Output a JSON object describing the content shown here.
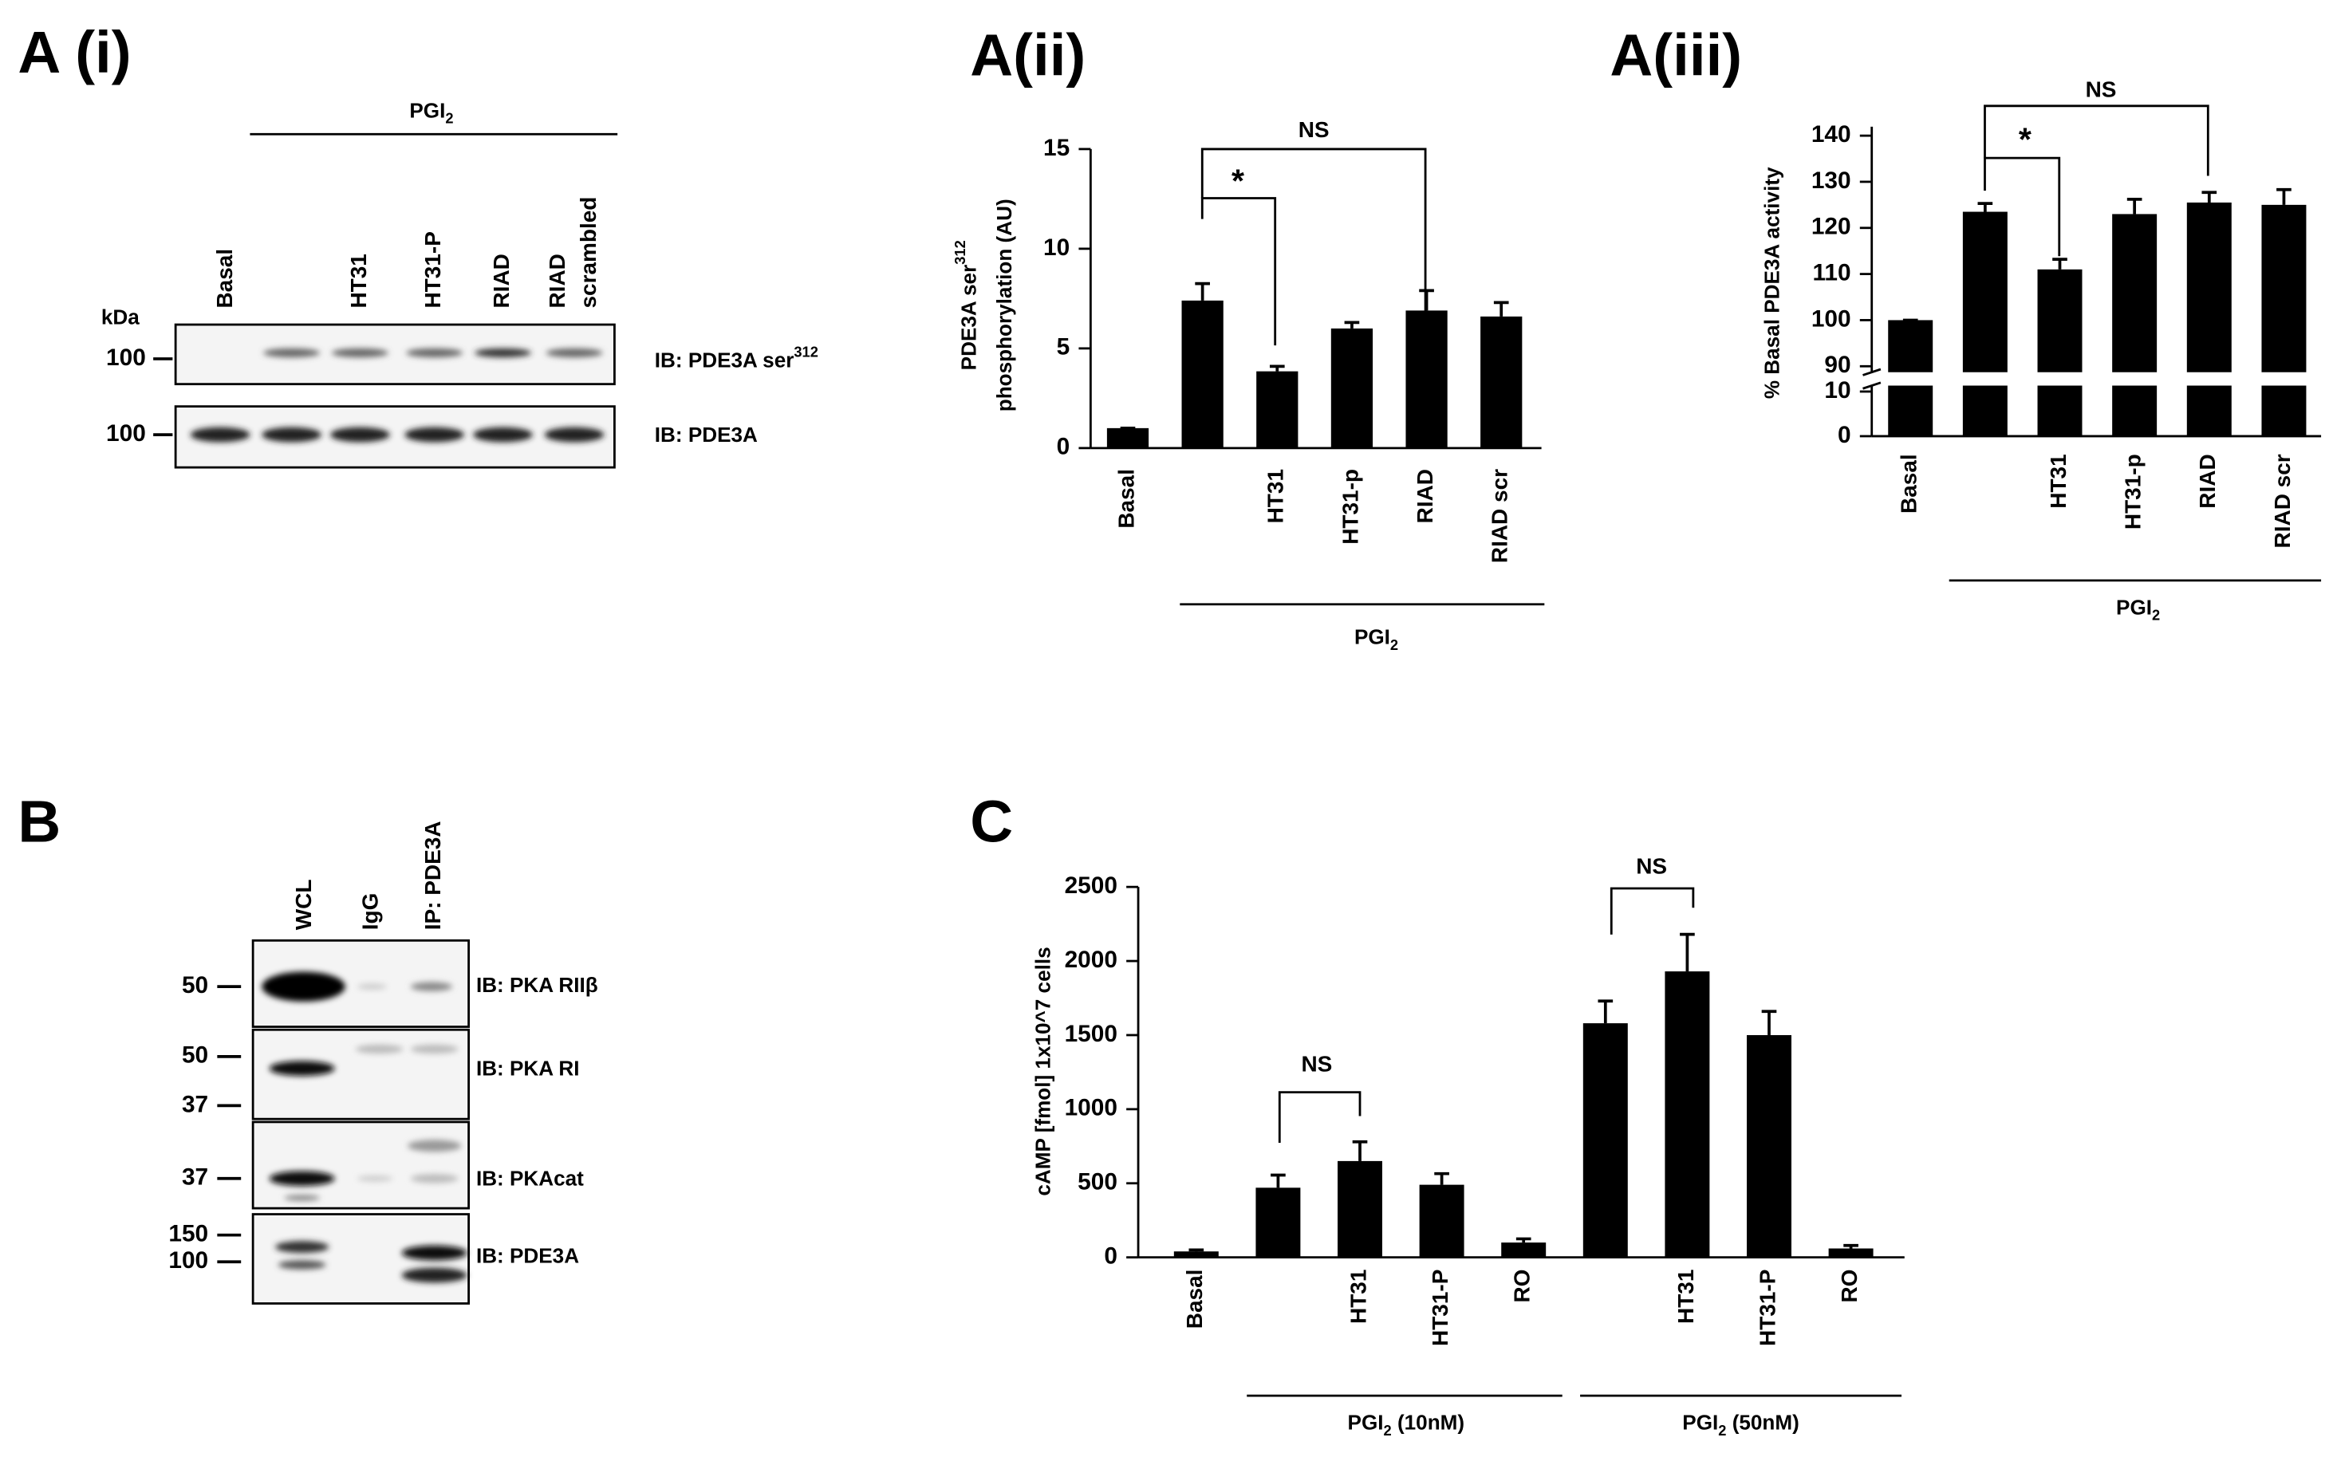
{
  "chart_data": [
    {
      "type": "bar",
      "title": "A(ii)",
      "y_label": [
        {
          "text": "PDE3A ser",
          "sup": "312"
        },
        "phosphorylation (AU)"
      ],
      "categories": [
        "Basal",
        null,
        "HT31",
        "HT31-p",
        "RIAD",
        "RIAD scr"
      ],
      "values": [
        1,
        7.4,
        3.85,
        6.0,
        6.9,
        6.6
      ],
      "errors": [
        0,
        0.85,
        0.25,
        0.3,
        1.0,
        0.7
      ],
      "color": "#000000",
      "ylim": [
        0,
        15
      ],
      "yticks": [
        0,
        5,
        10,
        15
      ],
      "group_labels": [
        {
          "text": "PGI",
          "sub": "2"
        }
      ],
      "annotations": [
        "*",
        "NS"
      ]
    },
    {
      "type": "bar",
      "title": "A(iii)",
      "y_label": [
        "% Basal PDE3A activity"
      ],
      "categories": [
        "Basal",
        null,
        "HT31",
        "HT31-p",
        "RIAD",
        "RIAD scr"
      ],
      "values": [
        100,
        123.5,
        111,
        123,
        125.5,
        125
      ],
      "errors": [
        0,
        1.8,
        2.2,
        3.2,
        2.2,
        3.3
      ],
      "color": "#000000",
      "ylim": [
        90,
        140
      ],
      "yticks": [
        90,
        100,
        110,
        120,
        130,
        140
      ],
      "ylim_lower": [
        0,
        10
      ],
      "yticks_lower": [
        0,
        10
      ],
      "group_labels": [
        {
          "text": "PGI",
          "sub": "2"
        }
      ],
      "annotations": [
        "*",
        "NS"
      ]
    },
    {
      "type": "bar",
      "title": "C",
      "y_label": [
        "cAMP [fmol] 1x10^7 cells"
      ],
      "categories": [
        "Basal",
        null,
        "HT31",
        "HT31-P",
        "RO",
        null,
        "HT31",
        "HT31-P",
        "RO"
      ],
      "values": [
        40,
        470,
        650,
        490,
        100,
        1580,
        1930,
        1500,
        60
      ],
      "errors": [
        10,
        85,
        130,
        75,
        25,
        150,
        250,
        160,
        20
      ],
      "color": "#000000",
      "ylim": [
        0,
        2500
      ],
      "yticks": [
        0,
        500,
        1000,
        1500,
        2000,
        2500
      ],
      "group_labels": [
        {
          "text": "PGI",
          "sub": "2",
          "rest": " (10nM)"
        },
        {
          "text": "PGI",
          "sub": "2",
          "rest": " (50nM)"
        }
      ],
      "annotations": [
        "NS",
        "NS"
      ]
    }
  ],
  "blots": [
    {
      "title": "A (i)",
      "group": {
        "text": "PGI",
        "sub": "2"
      },
      "lanes": [
        [
          "Basal"
        ],
        null,
        [
          "HT31"
        ],
        [
          "HT31-P"
        ],
        [
          "RIAD"
        ],
        [
          "RIAD",
          "scrambled"
        ]
      ],
      "unit": "kDa",
      "rows": [
        {
          "markers": [
            "100"
          ],
          "label": {
            "text": "IB: PDE3A ser",
            "sup": "312"
          }
        },
        {
          "markers": [
            "100"
          ],
          "label": "IB: PDE3A"
        }
      ]
    },
    {
      "title": "B",
      "lanes": [
        [
          "WCL"
        ],
        [
          "IgG"
        ],
        [
          "IP: PDE3A"
        ]
      ],
      "rows": [
        {
          "markers": [
            "50"
          ],
          "label": "IB: PKA RIIβ"
        },
        {
          "markers": [
            "50",
            "37"
          ],
          "label": "IB: PKA RI"
        },
        {
          "markers": [
            "37"
          ],
          "label": "IB: PKAcat"
        },
        {
          "markers": [
            "150",
            "100"
          ],
          "label": "IB: PDE3A"
        }
      ]
    }
  ]
}
